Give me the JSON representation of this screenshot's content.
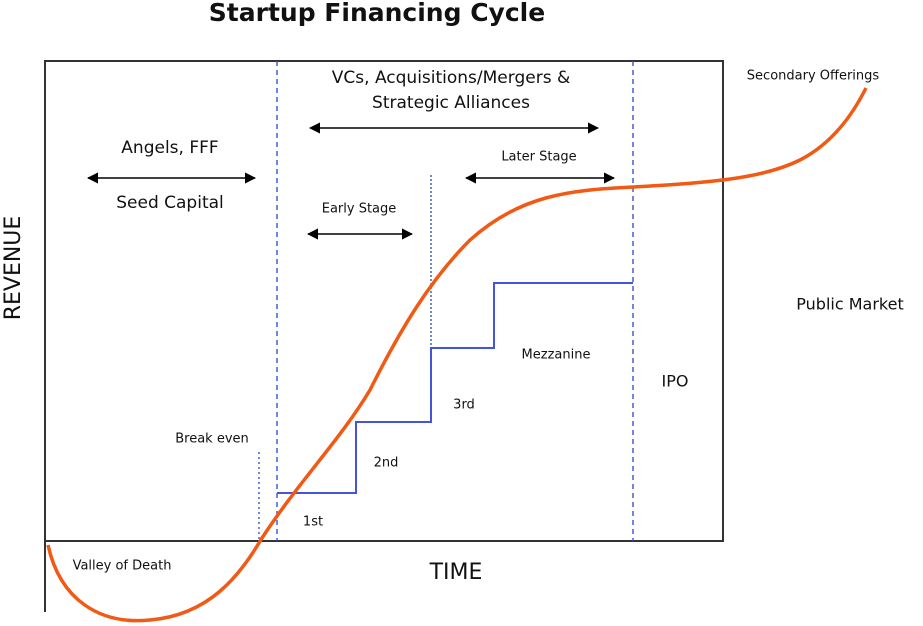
{
  "title": "Startup Financing Cycle",
  "axes": {
    "y": "REVENUE",
    "x": "TIME"
  },
  "phases": {
    "vcs_line1": "VCs, Acquisitions/Mergers &",
    "vcs_line2": "Strategic Alliances",
    "angels": "Angels, FFF",
    "seed": "Seed Capital",
    "later_stage": "Later Stage",
    "early_stage": "Early Stage"
  },
  "annotations": {
    "secondary": "Secondary Offerings",
    "public_market": "Public Market",
    "mezzanine": "Mezzanine",
    "ipo": "IPO",
    "third": "3rd",
    "break_even": "Break even",
    "second": "2nd",
    "first": "1st",
    "valley": "Valley of Death"
  }
}
